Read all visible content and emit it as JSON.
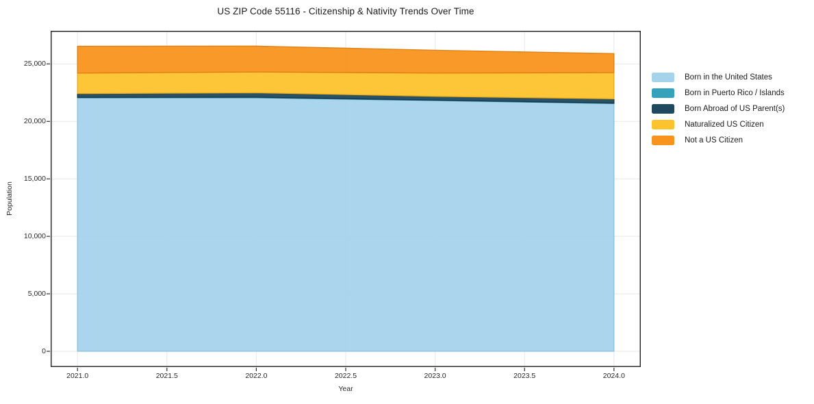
{
  "chart_data": {
    "type": "area",
    "stacked": true,
    "title": "US ZIP Code 55116 - Citizenship & Nativity Trends Over Time",
    "xlabel": "Year",
    "ylabel": "Population",
    "x": [
      2021,
      2022,
      2023,
      2024
    ],
    "series": [
      {
        "name": "Born in the United States",
        "color": "#a5d3eb",
        "edge": "#8cc0dd",
        "values": [
          22050,
          22060,
          21810,
          21550
        ]
      },
      {
        "name": "Born in Puerto Rico / Islands",
        "color": "#35a2bc",
        "edge": "#2d8ba3",
        "values": [
          40,
          40,
          40,
          40
        ]
      },
      {
        "name": "Born Abroad of US Parent(s)",
        "color": "#20485e",
        "edge": "#16364a",
        "values": [
          330,
          390,
          330,
          370
        ]
      },
      {
        "name": "Naturalized US Citizen",
        "color": "#fdc32e",
        "edge": "#e8ac14",
        "values": [
          1780,
          1810,
          2020,
          2280
        ]
      },
      {
        "name": "Not a US Citizen",
        "color": "#f8941e",
        "edge": "#df7d10",
        "values": [
          2340,
          2250,
          1990,
          1660
        ]
      }
    ],
    "totals": [
      26540,
      26550,
      26190,
      25900
    ],
    "xlim": [
      2020.85,
      2024.15
    ],
    "ylim": [
      -1370,
      27880
    ],
    "xticks": [
      2021.0,
      2021.5,
      2022.0,
      2022.5,
      2023.0,
      2023.5,
      2024.0
    ],
    "xtick_labels": [
      "2021.0",
      "2021.5",
      "2022.0",
      "2022.5",
      "2023.0",
      "2023.5",
      "2024.0"
    ],
    "yticks": [
      0,
      5000,
      10000,
      15000,
      20000,
      25000
    ],
    "ytick_labels": [
      "0",
      "5,000",
      "10,000",
      "15,000",
      "20,000",
      "25,000"
    ],
    "grid": true,
    "grid_color": "#e7e7e7",
    "axis_border_color": "#2b2b2b",
    "legend_position": "right-outside"
  }
}
